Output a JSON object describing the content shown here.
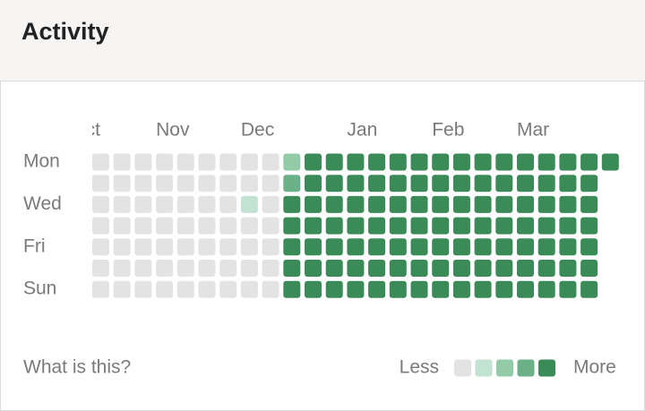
{
  "header": {
    "title": "Activity"
  },
  "months": [
    "Oct",
    "Nov",
    "Dec",
    "Jan",
    "Feb",
    "Mar"
  ],
  "days": [
    "Mon",
    "Wed",
    "Fri",
    "Sun"
  ],
  "weeks": [
    [
      0,
      0,
      0,
      0,
      0,
      0,
      0
    ],
    [
      0,
      0,
      0,
      0,
      0,
      0,
      0
    ],
    [
      0,
      0,
      0,
      0,
      0,
      0,
      0
    ],
    [
      0,
      0,
      0,
      0,
      0,
      0,
      0
    ],
    [
      0,
      0,
      0,
      0,
      0,
      0,
      0
    ],
    [
      0,
      0,
      0,
      0,
      0,
      0,
      0
    ],
    [
      0,
      0,
      0,
      0,
      0,
      0,
      0
    ],
    [
      0,
      0,
      1,
      0,
      0,
      0,
      0
    ],
    [
      0,
      0,
      0,
      0,
      0,
      0,
      0
    ],
    [
      2,
      3,
      4,
      4,
      4,
      4,
      4
    ],
    [
      4,
      4,
      4,
      4,
      4,
      4,
      4
    ],
    [
      4,
      4,
      4,
      4,
      4,
      4,
      4
    ],
    [
      4,
      4,
      4,
      4,
      4,
      4,
      4
    ],
    [
      4,
      4,
      4,
      4,
      4,
      4,
      4
    ],
    [
      4,
      4,
      4,
      4,
      4,
      4,
      4
    ],
    [
      4,
      4,
      4,
      4,
      4,
      4,
      4
    ],
    [
      4,
      4,
      4,
      4,
      4,
      4,
      4
    ],
    [
      4,
      4,
      4,
      4,
      4,
      4,
      4
    ],
    [
      4,
      4,
      4,
      4,
      4,
      4,
      4
    ],
    [
      4,
      4,
      4,
      4,
      4,
      4,
      4
    ],
    [
      4,
      4,
      4,
      4,
      4,
      4,
      4
    ],
    [
      4,
      4,
      4,
      4,
      4,
      4,
      4
    ],
    [
      4,
      4,
      4,
      4,
      4,
      4,
      4
    ],
    [
      4,
      4,
      4,
      4,
      4,
      4,
      4
    ],
    [
      4
    ]
  ],
  "footer": {
    "help": "What is this?"
  },
  "legend": {
    "less": "Less",
    "more": "More",
    "colors": [
      "#e3e3e3",
      "#c2e2d2",
      "#93caa8",
      "#6ab088",
      "#3b8b58"
    ]
  }
}
